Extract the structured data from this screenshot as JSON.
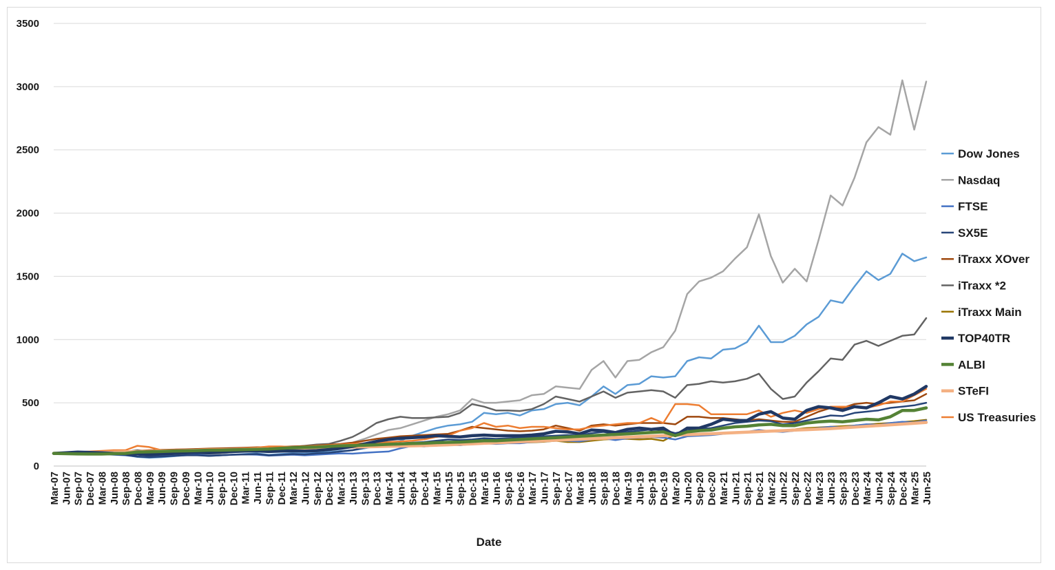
{
  "chart_data": {
    "type": "line",
    "xlabel": "Date",
    "ylabel": "",
    "ylim": [
      0,
      3500
    ],
    "yticks": [
      0,
      500,
      1000,
      1500,
      2000,
      2500,
      3000,
      3500
    ],
    "grid": "horizontal",
    "legend_position": "right",
    "x": [
      "Mar-07",
      "Jun-07",
      "Sep-07",
      "Dec-07",
      "Mar-08",
      "Jun-08",
      "Sep-08",
      "Dec-08",
      "Mar-09",
      "Jun-09",
      "Sep-09",
      "Dec-09",
      "Mar-10",
      "Jun-10",
      "Sep-10",
      "Dec-10",
      "Mar-11",
      "Jun-11",
      "Sep-11",
      "Dec-11",
      "Mar-12",
      "Jun-12",
      "Sep-12",
      "Dec-12",
      "Mar-13",
      "Jun-13",
      "Sep-13",
      "Dec-13",
      "Mar-14",
      "Jun-14",
      "Sep-14",
      "Dec-14",
      "Mar-15",
      "Jun-15",
      "Sep-15",
      "Dec-15",
      "Mar-16",
      "Jun-16",
      "Sep-16",
      "Dec-16",
      "Mar-17",
      "Jun-17",
      "Sep-17",
      "Dec-17",
      "Mar-18",
      "Jun-18",
      "Sep-18",
      "Dec-18",
      "Mar-19",
      "Jun-19",
      "Sep-19",
      "Dec-19",
      "Mar-20",
      "Jun-20",
      "Sep-20",
      "Dec-20",
      "Mar-21",
      "Jun-21",
      "Sep-21",
      "Dec-21",
      "Mar-22",
      "Jun-22",
      "Sep-22",
      "Dec-22",
      "Mar-23",
      "Jun-23",
      "Sep-23",
      "Dec-23",
      "Mar-24",
      "Jun-24",
      "Sep-24",
      "Dec-24",
      "Mar-25",
      "Jun-25"
    ],
    "series": [
      {
        "name": "Dow Jones",
        "color": "#5b9bd5",
        "width": 2.5,
        "values": [
          100,
          105,
          108,
          110,
          100,
          92,
          88,
          72,
          66,
          70,
          78,
          85,
          90,
          80,
          85,
          90,
          95,
          100,
          88,
          95,
          100,
          98,
          105,
          110,
          118,
          125,
          140,
          160,
          175,
          200,
          240,
          270,
          300,
          320,
          330,
          350,
          420,
          410,
          420,
          400,
          440,
          450,
          490,
          500,
          480,
          550,
          630,
          570,
          640,
          650,
          710,
          700,
          710,
          830,
          860,
          850,
          920,
          930,
          980,
          1110,
          980,
          980,
          1030,
          1120,
          1180,
          1310,
          1290,
          1420,
          1540,
          1470,
          1520,
          1680,
          1620,
          1650
        ]
      },
      {
        "name": "Nasdaq",
        "color": "#a5a5a5",
        "width": 2.5,
        "values": [
          100,
          108,
          112,
          110,
          100,
          95,
          90,
          75,
          70,
          75,
          85,
          95,
          100,
          92,
          100,
          110,
          115,
          120,
          110,
          120,
          130,
          128,
          140,
          150,
          165,
          185,
          215,
          250,
          285,
          300,
          330,
          360,
          390,
          410,
          440,
          530,
          500,
          500,
          510,
          520,
          560,
          570,
          630,
          620,
          610,
          760,
          830,
          700,
          830,
          840,
          900,
          940,
          1070,
          1360,
          1460,
          1490,
          1540,
          1640,
          1730,
          1990,
          1660,
          1450,
          1560,
          1460,
          1790,
          2140,
          2060,
          2280,
          2560,
          2680,
          2620,
          3050,
          2660,
          3040
        ]
      },
      {
        "name": "FTSE",
        "color": "#4472c4",
        "width": 2.5,
        "values": [
          100,
          102,
          103,
          100,
          95,
          90,
          85,
          75,
          72,
          78,
          82,
          85,
          88,
          82,
          86,
          90,
          92,
          90,
          82,
          86,
          90,
          85,
          90,
          95,
          100,
          98,
          105,
          110,
          115,
          140,
          160,
          155,
          165,
          170,
          165,
          175,
          180,
          175,
          180,
          180,
          190,
          195,
          200,
          200,
          195,
          210,
          220,
          205,
          220,
          225,
          230,
          225,
          210,
          235,
          240,
          245,
          255,
          265,
          270,
          285,
          275,
          270,
          280,
          290,
          300,
          310,
          305,
          320,
          330,
          325,
          340,
          350,
          345,
          360
        ]
      },
      {
        "name": "SX5E",
        "color": "#264478",
        "width": 2.5,
        "values": [
          100,
          102,
          105,
          100,
          95,
          92,
          88,
          75,
          70,
          75,
          80,
          85,
          85,
          80,
          85,
          90,
          92,
          95,
          85,
          90,
          95,
          92,
          100,
          105,
          115,
          125,
          145,
          160,
          170,
          180,
          185,
          190,
          200,
          210,
          205,
          210,
          220,
          215,
          220,
          225,
          230,
          235,
          240,
          245,
          240,
          260,
          270,
          255,
          270,
          280,
          290,
          285,
          260,
          280,
          295,
          300,
          320,
          340,
          350,
          360,
          355,
          330,
          340,
          360,
          380,
          400,
          395,
          420,
          430,
          440,
          460,
          470,
          480,
          500
        ]
      },
      {
        "name": "iTraxx XOver",
        "color": "#9e480e",
        "width": 2.5,
        "values": [
          100,
          102,
          104,
          106,
          110,
          112,
          115,
          120,
          125,
          128,
          130,
          132,
          135,
          138,
          140,
          142,
          145,
          148,
          150,
          152,
          155,
          158,
          162,
          168,
          175,
          185,
          200,
          215,
          225,
          235,
          240,
          245,
          250,
          255,
          280,
          310,
          300,
          290,
          280,
          275,
          280,
          290,
          320,
          300,
          280,
          320,
          330,
          320,
          330,
          340,
          340,
          340,
          330,
          390,
          390,
          380,
          380,
          370,
          360,
          370,
          360,
          350,
          350,
          390,
          430,
          460,
          460,
          490,
          500,
          490,
          500,
          510,
          520,
          570
        ]
      },
      {
        "name": "iTraxx *2",
        "color": "#636363",
        "width": 2.5,
        "values": [
          100,
          103,
          105,
          107,
          115,
          118,
          112,
          125,
          115,
          115,
          118,
          122,
          125,
          130,
          130,
          132,
          135,
          140,
          140,
          145,
          152,
          160,
          170,
          175,
          200,
          230,
          280,
          340,
          370,
          390,
          380,
          380,
          385,
          390,
          420,
          490,
          470,
          440,
          440,
          435,
          450,
          490,
          550,
          530,
          510,
          550,
          590,
          540,
          580,
          590,
          600,
          590,
          540,
          640,
          650,
          670,
          660,
          670,
          690,
          730,
          610,
          530,
          550,
          660,
          750,
          850,
          840,
          960,
          990,
          950,
          990,
          1030,
          1040,
          1170
        ]
      },
      {
        "name": "iTraxx Main",
        "color": "#997300",
        "width": 2.5,
        "values": [
          100,
          101,
          102,
          103,
          105,
          107,
          108,
          110,
          112,
          113,
          115,
          117,
          120,
          122,
          124,
          126,
          128,
          130,
          132,
          134,
          136,
          138,
          140,
          142,
          145,
          148,
          150,
          155,
          158,
          160,
          162,
          165,
          168,
          170,
          172,
          175,
          178,
          180,
          182,
          185,
          188,
          192,
          200,
          190,
          190,
          200,
          210,
          215,
          215,
          210,
          215,
          200,
          250,
          250,
          255,
          258,
          262,
          268,
          270,
          275,
          280,
          282,
          290,
          300,
          305,
          310,
          315,
          320,
          328,
          335,
          340,
          348,
          355,
          365
        ]
      },
      {
        "name": "TOP40TR",
        "color": "#203864",
        "width": 4.5,
        "values": [
          100,
          105,
          110,
          108,
          105,
          100,
          98,
          95,
          90,
          95,
          100,
          105,
          108,
          105,
          110,
          115,
          118,
          120,
          115,
          118,
          120,
          118,
          122,
          130,
          140,
          155,
          175,
          195,
          210,
          220,
          225,
          230,
          240,
          235,
          230,
          240,
          245,
          240,
          240,
          240,
          245,
          255,
          275,
          270,
          255,
          285,
          280,
          265,
          290,
          300,
          290,
          300,
          240,
          300,
          300,
          330,
          370,
          360,
          360,
          410,
          430,
          380,
          370,
          440,
          470,
          460,
          440,
          470,
          460,
          500,
          550,
          530,
          570,
          630
        ]
      },
      {
        "name": "ALBI",
        "color": "#548235",
        "width": 4.5,
        "values": [
          100,
          98,
          96,
          95,
          95,
          98,
          100,
          110,
          112,
          115,
          118,
          120,
          122,
          125,
          125,
          128,
          130,
          132,
          135,
          140,
          145,
          148,
          150,
          155,
          160,
          162,
          165,
          168,
          172,
          175,
          178,
          180,
          185,
          188,
          190,
          195,
          200,
          200,
          205,
          210,
          215,
          220,
          225,
          230,
          235,
          240,
          245,
          250,
          255,
          260,
          265,
          270,
          240,
          270,
          280,
          285,
          300,
          310,
          315,
          325,
          330,
          320,
          320,
          340,
          350,
          355,
          350,
          360,
          370,
          365,
          390,
          440,
          440,
          460
        ]
      },
      {
        "name": "STeFI",
        "color": "#f4b183",
        "width": 4.5,
        "values": [
          100,
          102,
          104,
          106,
          108,
          110,
          112,
          114,
          116,
          118,
          120,
          122,
          124,
          126,
          128,
          130,
          132,
          134,
          136,
          138,
          140,
          142,
          144,
          146,
          148,
          150,
          152,
          154,
          156,
          158,
          160,
          162,
          165,
          168,
          172,
          176,
          180,
          184,
          188,
          192,
          196,
          200,
          204,
          208,
          212,
          216,
          220,
          224,
          228,
          232,
          236,
          240,
          244,
          248,
          252,
          256,
          260,
          264,
          268,
          272,
          276,
          280,
          284,
          288,
          292,
          296,
          302,
          308,
          314,
          320,
          326,
          332,
          338,
          345
        ]
      },
      {
        "name": "US Treasuries",
        "color": "#ed7d31",
        "width": 2.5,
        "values": [
          100,
          105,
          110,
          115,
          120,
          125,
          125,
          160,
          150,
          125,
          125,
          125,
          130,
          135,
          135,
          135,
          140,
          145,
          155,
          155,
          150,
          155,
          160,
          165,
          170,
          175,
          180,
          185,
          190,
          195,
          200,
          210,
          230,
          240,
          280,
          300,
          340,
          310,
          320,
          300,
          310,
          310,
          300,
          290,
          290,
          310,
          320,
          330,
          340,
          340,
          380,
          340,
          490,
          490,
          480,
          410,
          410,
          410,
          410,
          440,
          390,
          420,
          440,
          420,
          450,
          470,
          470,
          470,
          460,
          480,
          510,
          510,
          560,
          610
        ]
      }
    ]
  }
}
